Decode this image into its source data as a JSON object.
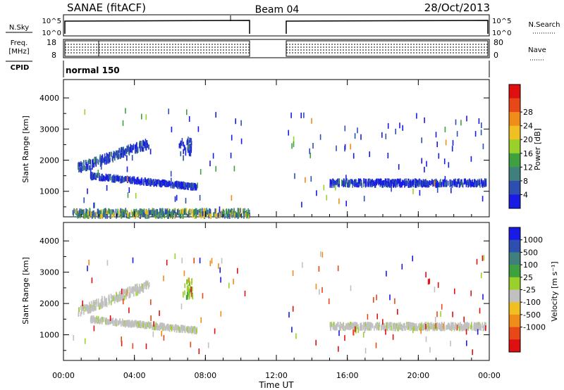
{
  "header": {
    "station": "SANAE (fitACF)",
    "beam": "Beam 04",
    "date": "28/Oct/2013"
  },
  "strips": {
    "nsky_label": "N.Sky",
    "nsky_ticks": [
      "10^5",
      "10^0"
    ],
    "nsearch_label": "N.Search",
    "nsearch_ticks": [
      "10^5",
      "10^0"
    ],
    "freq_label": "Freq.",
    "freq_unit": "[MHz]",
    "freq_ticks": [
      "18",
      "8"
    ],
    "nave_label": "Nave",
    "nave_ticks": [
      "80",
      "0"
    ],
    "cpid_label": "CPID",
    "cpid_value": "normal 150"
  },
  "chart_data": [
    {
      "type": "heatmap",
      "panel": "power",
      "ylabel": "Slant Range [km]",
      "xlabel": "",
      "x_ticks": [
        "00:00",
        "04:00",
        "08:00",
        "12:00",
        "16:00",
        "20:00",
        "00:00"
      ],
      "xlim_hours": [
        0,
        24
      ],
      "y_ticks": [
        1000,
        2000,
        3000,
        4000
      ],
      "ylim_km": [
        180,
        4590
      ],
      "colorbar": {
        "label": "Power [dB]",
        "ticks": [
          "4",
          "8",
          "12",
          "16",
          "20",
          "24",
          "28"
        ]
      },
      "colors": [
        "#1a1ae6",
        "#2c4fb0",
        "#3f7f7c",
        "#3fa040",
        "#9ad02a",
        "#f0c020",
        "#f08c18",
        "#e84818",
        "#e01010"
      ],
      "features": [
        {
          "band": "rising arc",
          "t": [
            0.8,
            4.8
          ],
          "range_km": [
            1750,
            2550
          ],
          "dominant": "8-12 dB"
        },
        {
          "band": "descending arc",
          "t": [
            1.5,
            7.5
          ],
          "range_km": [
            1150,
            1500
          ],
          "dominant": "4-8 dB"
        },
        {
          "band": "short arc",
          "t": [
            6.5,
            7.2
          ],
          "range_km": [
            2200,
            2700
          ],
          "dominant": "4-8 dB"
        },
        {
          "band": "near range",
          "t": [
            0.5,
            10.5
          ],
          "range_km": [
            200,
            400
          ],
          "dominant": "8-16 dB"
        },
        {
          "band": "late band",
          "t": [
            15.0,
            23.8
          ],
          "range_km": [
            1200,
            1350
          ],
          "dominant": "4-8 dB"
        }
      ]
    },
    {
      "type": "heatmap",
      "panel": "velocity",
      "ylabel": "Slant Range [km]",
      "xlabel": "Time UT",
      "x_ticks": [
        "00:00",
        "04:00",
        "08:00",
        "12:00",
        "16:00",
        "20:00",
        "00:00"
      ],
      "xlim_hours": [
        0,
        24
      ],
      "y_ticks": [
        1000,
        2000,
        3000,
        4000
      ],
      "ylim_km": [
        180,
        4590
      ],
      "colorbar": {
        "label": "Velocity [m s⁻¹]",
        "ticks": [
          "1000",
          "500",
          "100",
          "25",
          "-25",
          "-100",
          "-500",
          "-1000"
        ]
      },
      "colors": [
        "#1a1ae6",
        "#2c4fb0",
        "#3f7f7c",
        "#3fa040",
        "#9ad02a",
        "#c0c0c0",
        "#f0c020",
        "#f08c18",
        "#e84818",
        "#e01010"
      ],
      "features": [
        {
          "band": "rising arc",
          "t": [
            0.8,
            4.8
          ],
          "range_km": [
            1750,
            2600
          ],
          "dominant": "-25..25 m/s"
        },
        {
          "band": "descending arc",
          "t": [
            1.5,
            7.5
          ],
          "range_km": [
            1150,
            1500
          ],
          "dominant": "-25..25 m/s"
        },
        {
          "band": "green streak",
          "t": [
            6.7,
            7.3
          ],
          "range_km": [
            2200,
            2800
          ],
          "dominant": "25..100 m/s"
        },
        {
          "band": "late band",
          "t": [
            15.0,
            23.8
          ],
          "range_km": [
            1200,
            1350
          ],
          "dominant": "-25..25 m/s"
        }
      ]
    }
  ]
}
